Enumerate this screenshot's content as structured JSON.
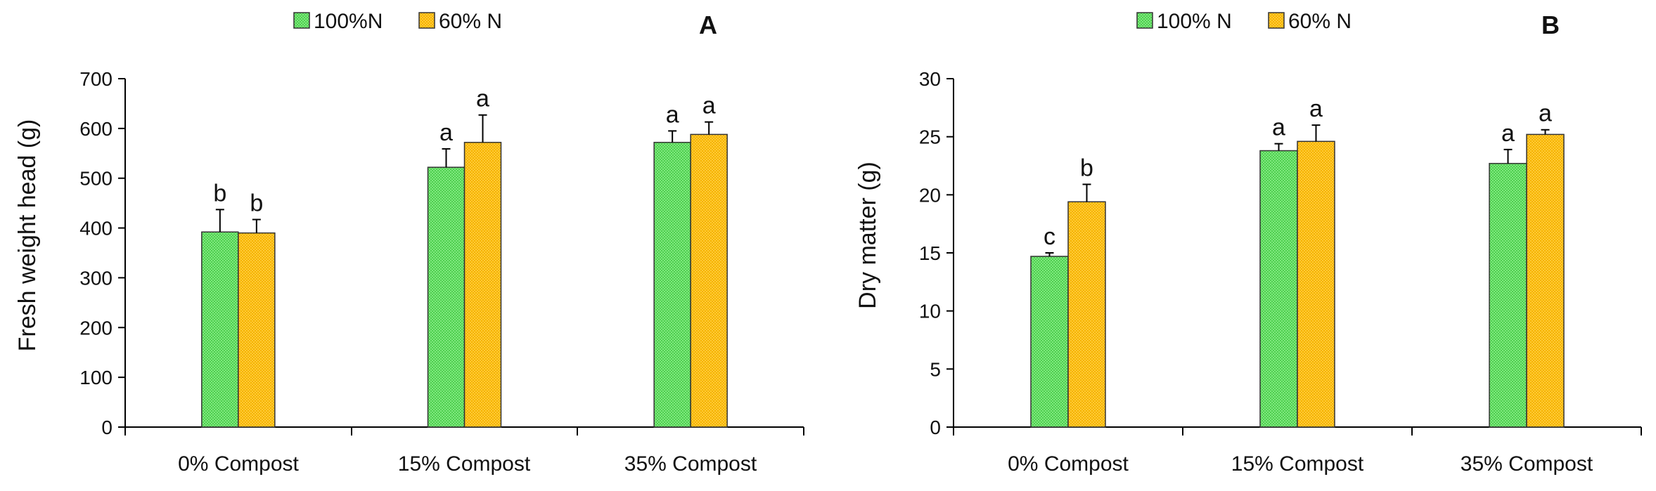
{
  "colors": {
    "s100": "#6fe06f",
    "s60": "#ffc21c",
    "stroke": "#333333"
  },
  "chart_data": [
    {
      "panel": "A",
      "type": "bar",
      "title": "",
      "ylabel": "Fresh weight head (g)",
      "xlabel": "",
      "ylim": [
        0,
        700
      ],
      "ystep": 100,
      "categories": [
        "0% Compost",
        "15% Compost",
        "35% Compost"
      ],
      "legend": [
        "100%N",
        "60% N"
      ],
      "series": [
        {
          "name": "100%N",
          "values": [
            392,
            522,
            572
          ],
          "errors": [
            45,
            37,
            23
          ],
          "letters": [
            "b",
            "a",
            "a"
          ]
        },
        {
          "name": "60% N",
          "values": [
            390,
            572,
            588
          ],
          "errors": [
            27,
            55,
            25
          ],
          "letters": [
            "b",
            "a",
            "a"
          ]
        }
      ]
    },
    {
      "panel": "B",
      "type": "bar",
      "title": "",
      "ylabel": "Dry matter (g)",
      "xlabel": "",
      "ylim": [
        0,
        30
      ],
      "ystep": 5,
      "categories": [
        "0% Compost",
        "15% Compost",
        "35% Compost"
      ],
      "legend": [
        "100% N",
        "60% N"
      ],
      "series": [
        {
          "name": "100% N",
          "values": [
            14.7,
            23.8,
            22.7
          ],
          "errors": [
            0.3,
            0.6,
            1.2
          ],
          "letters": [
            "c",
            "a",
            "a"
          ]
        },
        {
          "name": "60% N",
          "values": [
            19.4,
            24.6,
            25.2
          ],
          "errors": [
            1.5,
            1.4,
            0.4
          ],
          "letters": [
            "b",
            "a",
            "a"
          ]
        }
      ]
    }
  ]
}
